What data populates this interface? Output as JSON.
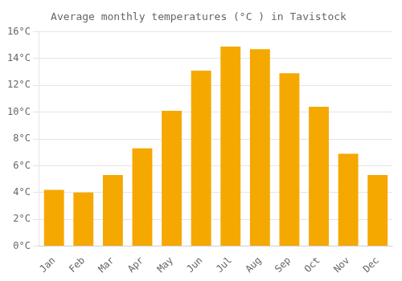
{
  "chart_data": {
    "type": "bar",
    "title": "Average monthly temperatures (°C ) in Tavistock",
    "categories": [
      "Jan",
      "Feb",
      "Mar",
      "Apr",
      "May",
      "Jun",
      "Jul",
      "Aug",
      "Sep",
      "Oct",
      "Nov",
      "Dec"
    ],
    "values": [
      4.2,
      4.0,
      5.3,
      7.3,
      10.1,
      13.1,
      14.9,
      14.7,
      12.9,
      10.4,
      6.9,
      5.3
    ],
    "color": "#F5A800",
    "ylim": [
      0,
      16
    ],
    "yticks": [
      {
        "value": 0,
        "label": "0°C"
      },
      {
        "value": 2,
        "label": "2°C"
      },
      {
        "value": 4,
        "label": "4°C"
      },
      {
        "value": 6,
        "label": "6°C"
      },
      {
        "value": 8,
        "label": "8°C"
      },
      {
        "value": 10,
        "label": "10°C"
      },
      {
        "value": 12,
        "label": "12°C"
      },
      {
        "value": 14,
        "label": "14°C"
      },
      {
        "value": 16,
        "label": "16°C"
      }
    ],
    "grid": true
  }
}
